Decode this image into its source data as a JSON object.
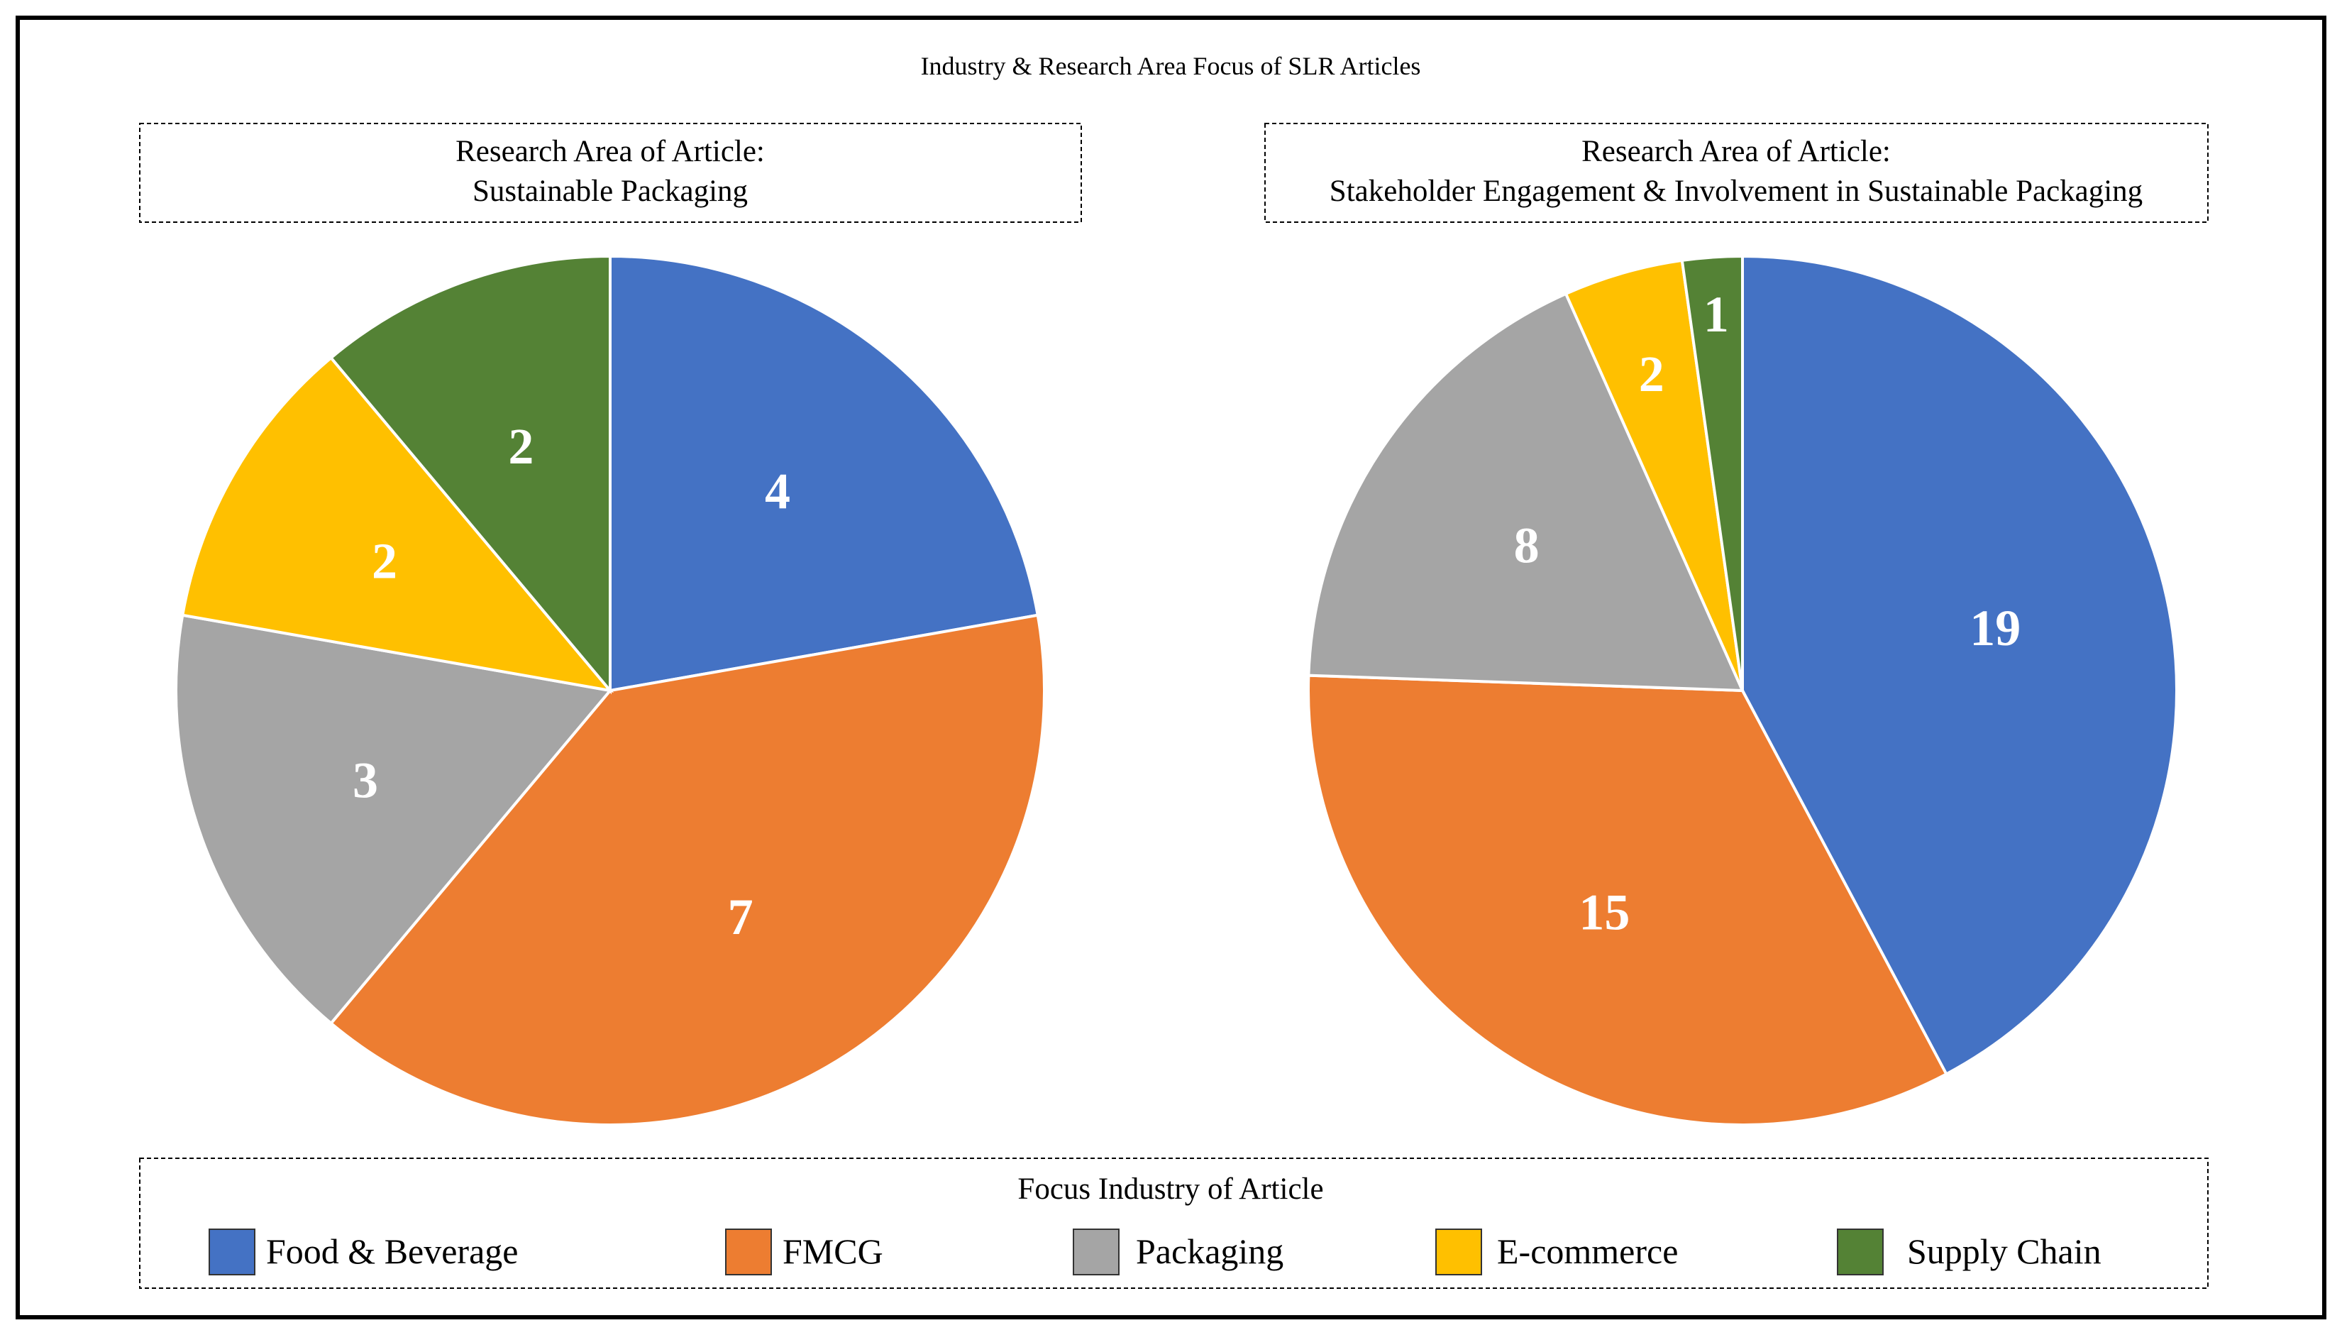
{
  "figure_title": "Industry & Research Area Focus of SLR Articles",
  "colors": {
    "food_beverage": "#4472C4",
    "fmcg": "#ED7D31",
    "packaging": "#A5A5A5",
    "ecommerce": "#FFC000",
    "supply_chain": "#548235"
  },
  "chart_data": [
    {
      "type": "pie",
      "title": "Research Area of Article:",
      "subtitle": "Sustainable Packaging",
      "categories": [
        "Food & Beverage",
        "FMCG",
        "Packaging",
        "E-commerce",
        "Supply Chain"
      ],
      "values": [
        4,
        7,
        3,
        2,
        2
      ],
      "data_labels": [
        "4",
        "7",
        "3",
        "2",
        "2"
      ],
      "start": "12 o'clock",
      "direction": "clockwise"
    },
    {
      "type": "pie",
      "title": "Research Area of Article:",
      "subtitle": "Stakeholder Engagement & Involvement in Sustainable Packaging",
      "categories": [
        "Food & Beverage",
        "FMCG",
        "Packaging",
        "E-commerce",
        "Supply Chain"
      ],
      "values": [
        19,
        15,
        8,
        2,
        1
      ],
      "data_labels": [
        "19",
        "15",
        "8",
        "2",
        "1"
      ],
      "start": "12 o'clock",
      "direction": "clockwise"
    }
  ],
  "legend": {
    "title": "Focus Industry of Article",
    "position": "bottom",
    "items": [
      {
        "label": "Food & Beverage",
        "color_key": "food_beverage"
      },
      {
        "label": "FMCG",
        "color_key": "fmcg"
      },
      {
        "label": "Packaging",
        "color_key": "packaging"
      },
      {
        "label": "E-commerce",
        "color_key": "ecommerce"
      },
      {
        "label": "Supply Chain",
        "color_key": "supply_chain"
      }
    ]
  }
}
